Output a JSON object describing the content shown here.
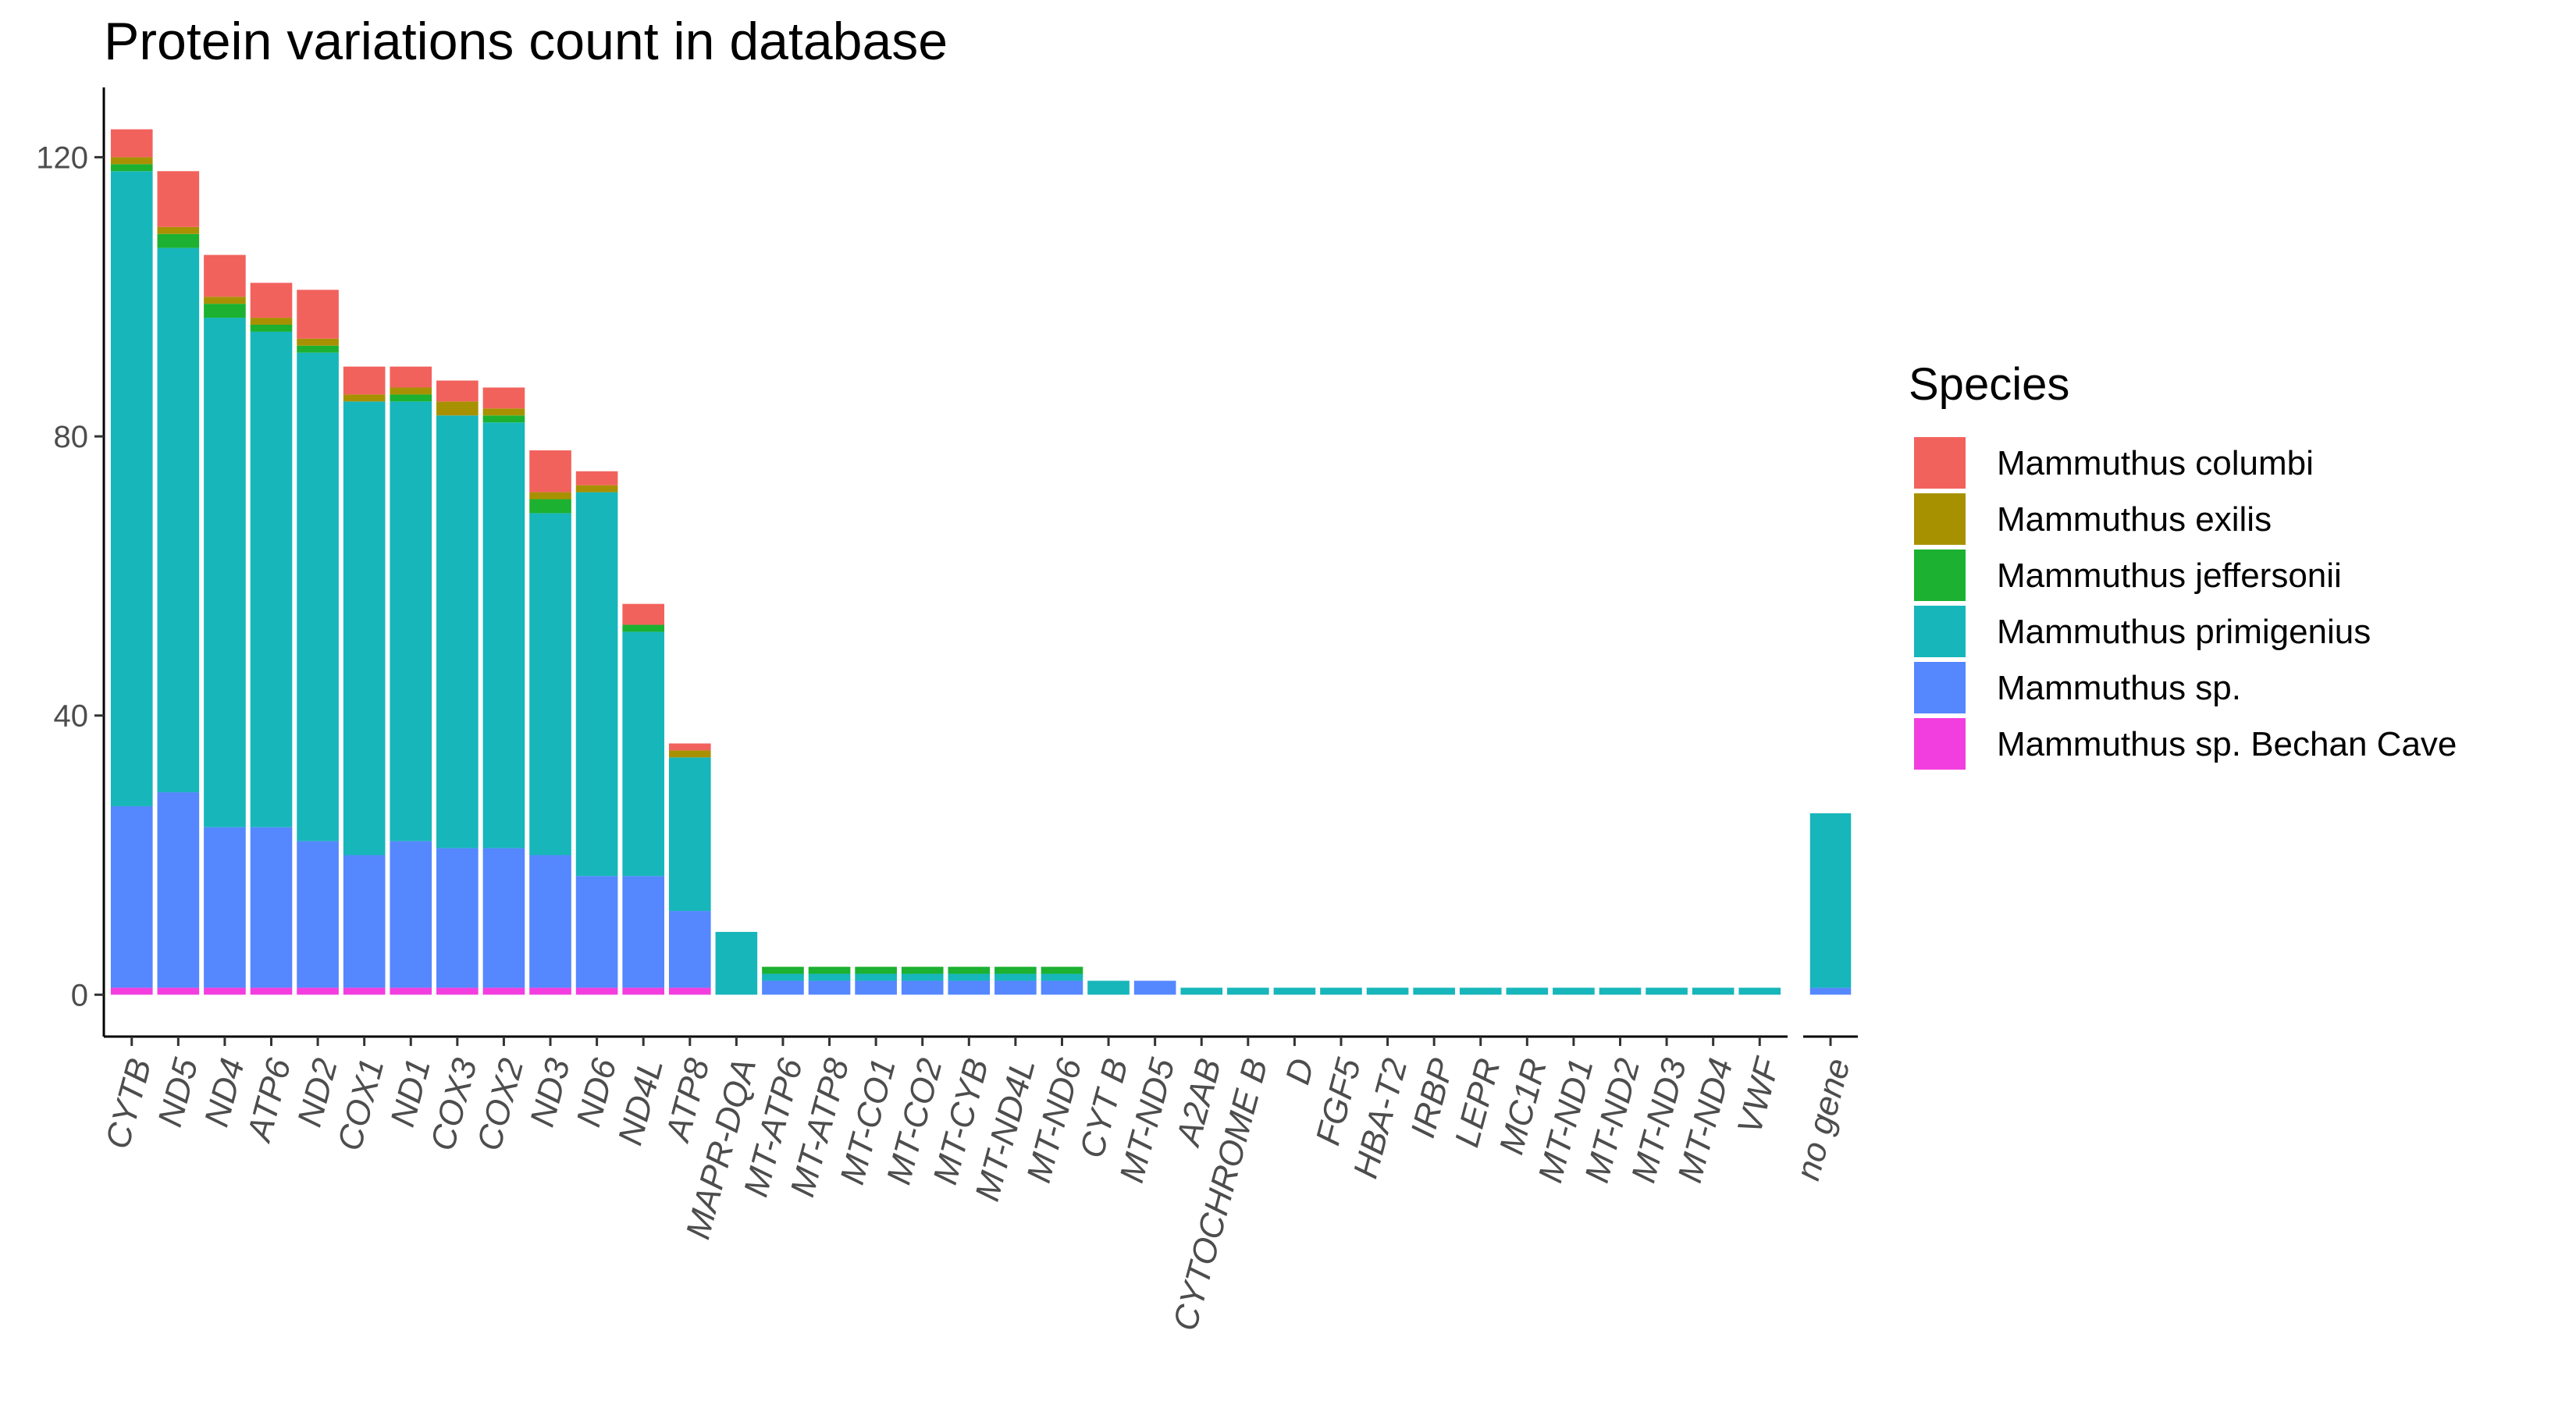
{
  "chart_data": {
    "type": "bar",
    "stacked": true,
    "title": "Protein variations count in database",
    "xlabel": "",
    "ylabel": "",
    "ylim": [
      -6,
      130
    ],
    "yticks": [
      0,
      40,
      80,
      120
    ],
    "grid": false,
    "legend": {
      "title": "Species",
      "placement": "right"
    },
    "panels": [
      {
        "categories": [
          "CYTB",
          "ND5",
          "ND4",
          "ATP6",
          "ND2",
          "COX1",
          "ND1",
          "COX3",
          "COX2",
          "ND3",
          "ND6",
          "ND4L",
          "ATP8",
          "MAPR-DQA",
          "MT-ATP6",
          "MT-ATP8",
          "MT-CO1",
          "MT-CO2",
          "MT-CYB",
          "MT-ND4L",
          "MT-ND6",
          "CYT B",
          "MT-ND5",
          "A2AB",
          "CYTOCHROME B",
          "D",
          "FGF5",
          "HBA-T2",
          "IRBP",
          "LEPR",
          "MC1R",
          "MT-ND1",
          "MT-ND2",
          "MT-ND3",
          "MT-ND4",
          "VWF"
        ]
      },
      {
        "categories": [
          "no gene"
        ]
      }
    ],
    "categories": [
      "CYTB",
      "ND5",
      "ND4",
      "ATP6",
      "ND2",
      "COX1",
      "ND1",
      "COX3",
      "COX2",
      "ND3",
      "ND6",
      "ND4L",
      "ATP8",
      "MAPR-DQA",
      "MT-ATP6",
      "MT-ATP8",
      "MT-CO1",
      "MT-CO2",
      "MT-CYB",
      "MT-ND4L",
      "MT-ND6",
      "CYT B",
      "MT-ND5",
      "A2AB",
      "CYTOCHROME B",
      "D",
      "FGF5",
      "HBA-T2",
      "IRBP",
      "LEPR",
      "MC1R",
      "MT-ND1",
      "MT-ND2",
      "MT-ND3",
      "MT-ND4",
      "VWF",
      "no gene"
    ],
    "series": [
      {
        "name": "Mammuthus sp. Bechan Cave",
        "color": "#F33EDF",
        "values": [
          1,
          1,
          1,
          1,
          1,
          1,
          1,
          1,
          1,
          1,
          1,
          1,
          1,
          0,
          0,
          0,
          0,
          0,
          0,
          0,
          0,
          0,
          0,
          0,
          0,
          0,
          0,
          0,
          0,
          0,
          0,
          0,
          0,
          0,
          0,
          0,
          0
        ]
      },
      {
        "name": "Mammuthus sp.",
        "color": "#5587FF",
        "values": [
          26,
          28,
          23,
          23,
          21,
          19,
          21,
          20,
          20,
          19,
          16,
          16,
          11,
          0,
          2,
          2,
          2,
          2,
          2,
          2,
          2,
          0,
          2,
          0,
          0,
          0,
          0,
          0,
          0,
          0,
          0,
          0,
          0,
          0,
          0,
          0,
          1
        ]
      },
      {
        "name": "Mammuthus primigenius",
        "color": "#17B6BA",
        "values": [
          91,
          78,
          73,
          71,
          70,
          65,
          63,
          62,
          61,
          49,
          55,
          35,
          22,
          9,
          1,
          1,
          1,
          1,
          1,
          1,
          1,
          2,
          0,
          1,
          1,
          1,
          1,
          1,
          1,
          1,
          1,
          1,
          1,
          1,
          1,
          1,
          25
        ]
      },
      {
        "name": "Mammuthus jeffersonii",
        "color": "#1CB131",
        "values": [
          1,
          2,
          2,
          1,
          1,
          0,
          1,
          0,
          1,
          2,
          0,
          1,
          0,
          0,
          1,
          1,
          1,
          1,
          1,
          1,
          1,
          0,
          0,
          0,
          0,
          0,
          0,
          0,
          0,
          0,
          0,
          0,
          0,
          0,
          0,
          0,
          0
        ]
      },
      {
        "name": "Mammuthus exilis",
        "color": "#A89100",
        "values": [
          1,
          1,
          1,
          1,
          1,
          1,
          1,
          2,
          1,
          1,
          1,
          0,
          1,
          0,
          0,
          0,
          0,
          0,
          0,
          0,
          0,
          0,
          0,
          0,
          0,
          0,
          0,
          0,
          0,
          0,
          0,
          0,
          0,
          0,
          0,
          0,
          0
        ]
      },
      {
        "name": "Mammuthus columbi",
        "color": "#F2625D",
        "values": [
          4,
          8,
          6,
          5,
          7,
          4,
          3,
          3,
          3,
          6,
          2,
          3,
          1,
          0,
          0,
          0,
          0,
          0,
          0,
          0,
          0,
          0,
          0,
          0,
          0,
          0,
          0,
          0,
          0,
          0,
          0,
          0,
          0,
          0,
          0,
          0,
          0
        ]
      }
    ]
  }
}
